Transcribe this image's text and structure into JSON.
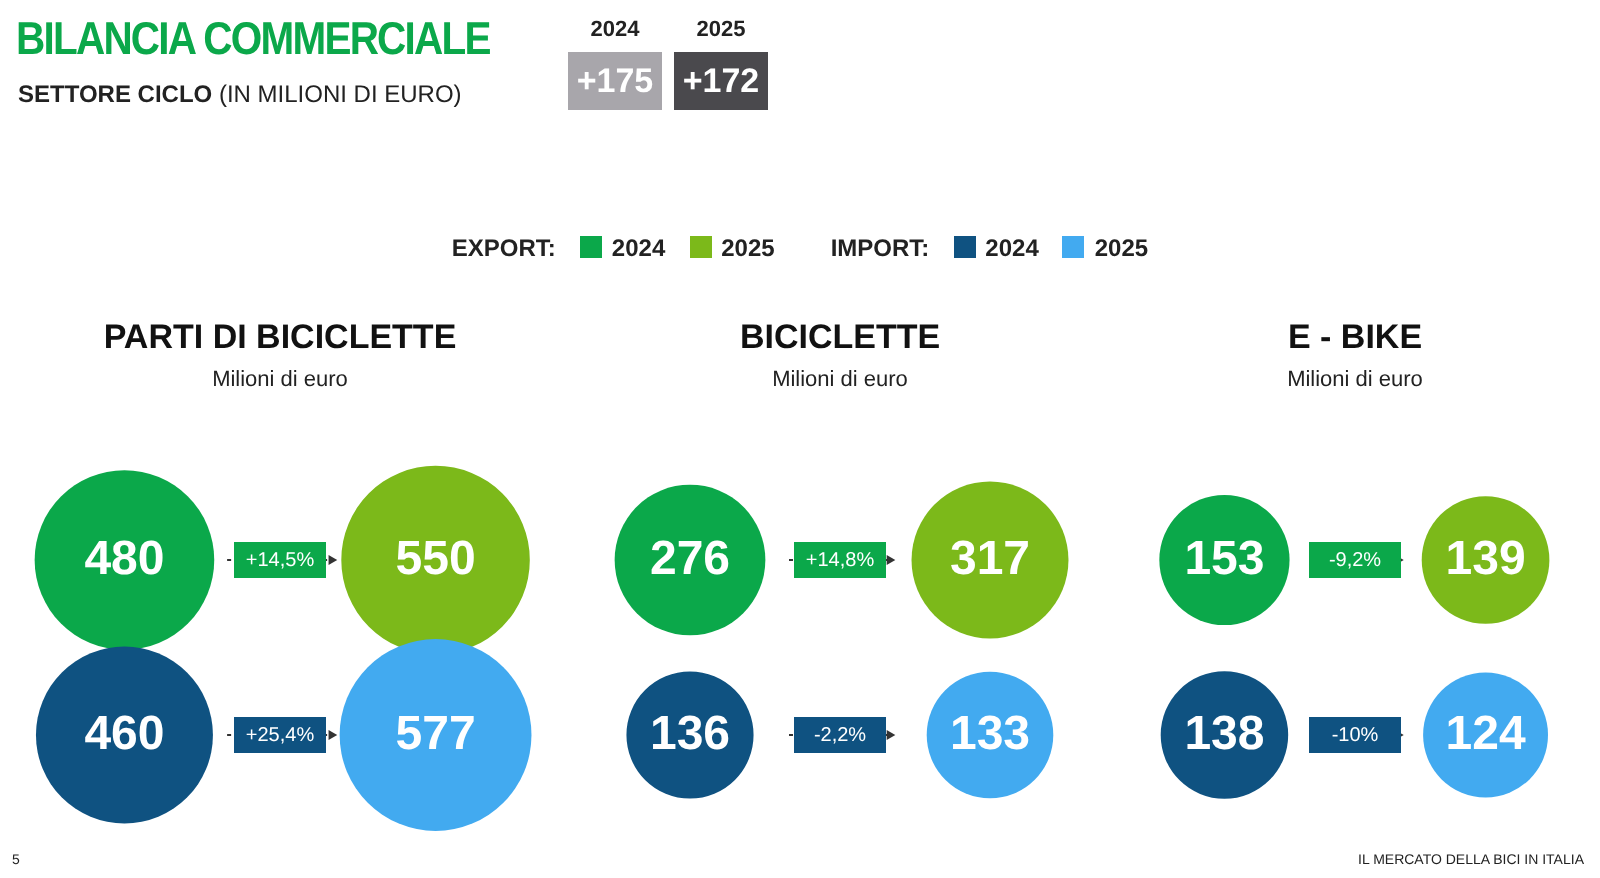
{
  "chart_data": [
    {
      "type": "other",
      "title": "BILANCIA COMMERCIALE",
      "subtitle": "SETTORE CICLO (IN MILIONI DI EURO)",
      "categories": [
        "2024",
        "2025"
      ],
      "value_labels": [
        "+175",
        "+172"
      ],
      "colors": [
        "#a8a6ab",
        "#4a494d"
      ],
      "annotations": [
        "EXPORT:",
        "IMPORT:",
        "5",
        "IL MERCATO DELLA BICI IN ITALIA"
      ]
    },
    {
      "type": "other",
      "title": "PARTI DI BICICLETTE",
      "subtitle": "Milioni di euro",
      "categories": [
        null,
        null,
        null,
        null
      ],
      "values": [
        480,
        550,
        460,
        577
      ],
      "colors": [
        "#0ba84a",
        "#7cb91a",
        "#0f5281",
        "#42aaf0"
      ],
      "data_labels": true,
      "annotations": [
        "+14,5%",
        "+25,4%"
      ]
    },
    {
      "type": "other",
      "title": "BICICLETTE",
      "subtitle": "Milioni di euro",
      "categories": [
        null,
        null,
        null,
        null
      ],
      "values": [
        276,
        317,
        136,
        133
      ],
      "colors": [
        "#0ba84a",
        "#7cb91a",
        "#0f5281",
        "#42aaf0"
      ],
      "data_labels": true,
      "annotations": [
        "+14,8%",
        "-2,2%"
      ]
    },
    {
      "type": "other",
      "title": "E - BIKE",
      "subtitle": "Milioni di euro",
      "categories": [
        null,
        null,
        null,
        null
      ],
      "values": [
        153,
        139,
        138,
        124
      ],
      "colors": [
        "#0ba84a",
        "#7cb91a",
        "#0f5281",
        "#42aaf0"
      ],
      "data_labels": true,
      "annotations": [
        "-9,2%",
        "-10%"
      ]
    }
  ]
}
